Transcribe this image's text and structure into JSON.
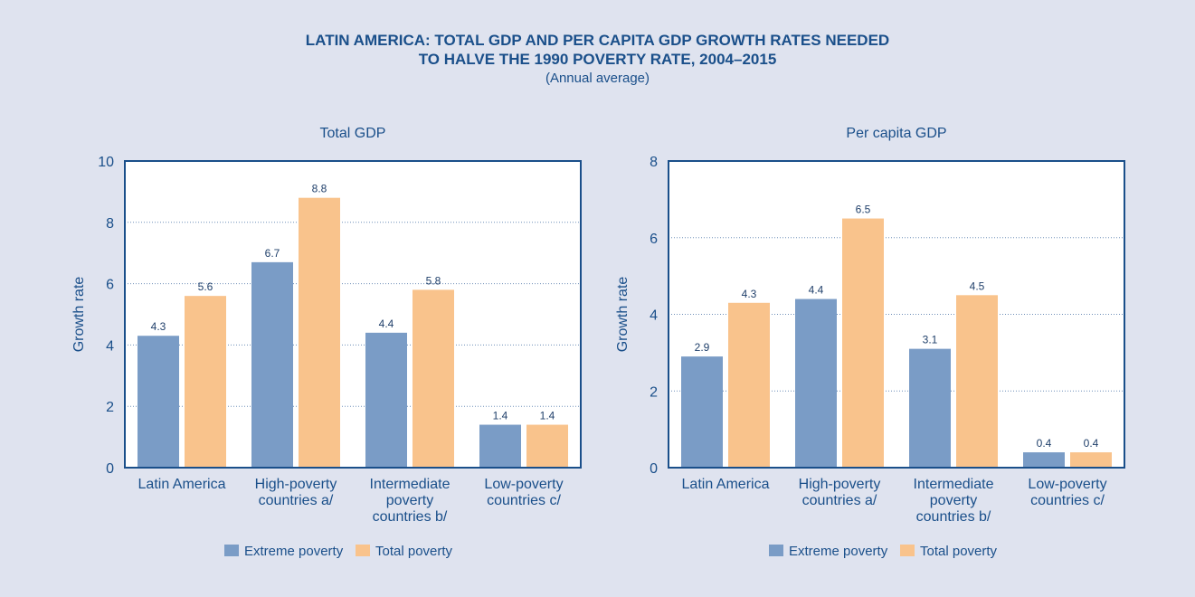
{
  "header": {
    "title_line1": "LATIN AMERICA: TOTAL GDP AND PER CAPITA GDP GROWTH RATES NEEDED",
    "title_line2": "TO HALVE THE 1990 POVERTY RATE, 2004–2015",
    "subtitle": "(Annual average)"
  },
  "colors": {
    "background": "#dfe3ef",
    "plot_background": "#ffffff",
    "axis": "#1a4f8a",
    "text": "#1a4f8a",
    "extreme_poverty": "#7a9cc6",
    "total_poverty": "#f9c38c"
  },
  "chart_data": [
    {
      "type": "bar",
      "title": "Total GDP",
      "ylabel": "Growth rate",
      "ylim": [
        0,
        10
      ],
      "yticks": [
        0,
        2,
        4,
        6,
        8,
        10
      ],
      "grid": true,
      "legend_position": "bottom",
      "categories": [
        [
          "Latin America"
        ],
        [
          "High-poverty",
          "countries a/"
        ],
        [
          "Intermediate",
          "poverty",
          "countries b/"
        ],
        [
          "Low-poverty",
          "countries c/"
        ]
      ],
      "series": [
        {
          "name": "Extreme poverty",
          "values": [
            4.3,
            6.7,
            4.4,
            1.4
          ]
        },
        {
          "name": "Total poverty",
          "values": [
            5.6,
            8.8,
            5.8,
            1.4
          ]
        }
      ]
    },
    {
      "type": "bar",
      "title": "Per capita GDP",
      "ylabel": "Growth rate",
      "ylim": [
        0,
        8
      ],
      "yticks": [
        0,
        2,
        4,
        6,
        8
      ],
      "grid": true,
      "legend_position": "bottom",
      "categories": [
        [
          "Latin America"
        ],
        [
          "High-poverty",
          "countries a/"
        ],
        [
          "Intermediate",
          "poverty",
          "countries b/"
        ],
        [
          "Low-poverty",
          "countries c/"
        ]
      ],
      "series": [
        {
          "name": "Extreme poverty",
          "values": [
            2.9,
            4.4,
            3.1,
            0.4
          ]
        },
        {
          "name": "Total poverty",
          "values": [
            4.3,
            6.5,
            4.5,
            0.4
          ]
        }
      ]
    }
  ]
}
